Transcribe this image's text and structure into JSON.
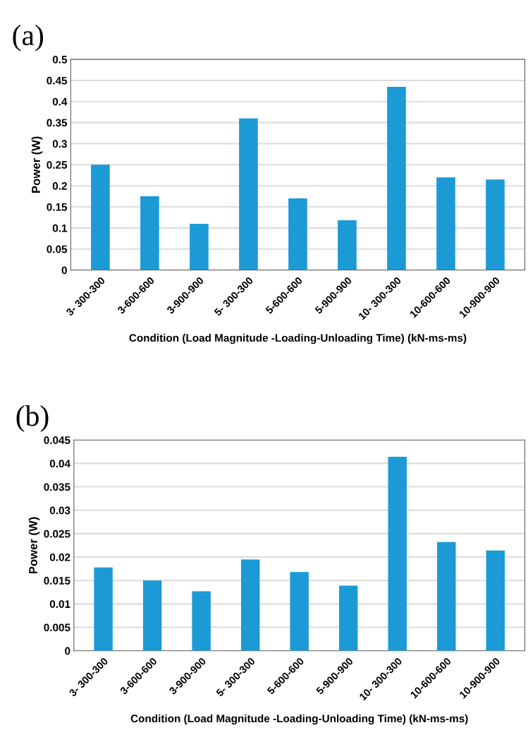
{
  "chart_data": [
    {
      "type": "bar",
      "title": "(a)",
      "xlabel": "Condition (Load Magnitude -Loading-Unloading Time) (kN-ms-ms)",
      "ylabel": "Power (W)",
      "categories": [
        "3- 300-300",
        "3-600-600",
        "3-900-900",
        "5- 300-300",
        "5-600-600",
        "5-900-900",
        "10- 300-300",
        "10-600-600",
        "10-900-900"
      ],
      "values": [
        0.25,
        0.175,
        0.11,
        0.36,
        0.17,
        0.118,
        0.435,
        0.22,
        0.215
      ],
      "color": "#1b9ad6",
      "ylim": [
        0,
        0.5
      ],
      "yticks": [
        0,
        0.05,
        0.1,
        0.15,
        0.2,
        0.25,
        0.3,
        0.35,
        0.4,
        0.45,
        0.5
      ],
      "grid": "y"
    },
    {
      "type": "bar",
      "title": "(b)",
      "xlabel": "Condition (Load Magnitude -Loading-Unloading Time) (kN-ms-ms)",
      "ylabel": "Power (W)",
      "categories": [
        "3- 300-300",
        "3-600-600",
        "3-900-900",
        "5- 300-300",
        "5-600-600",
        "5-900-900",
        "10- 300-300",
        "10-600-600",
        "10-900-900"
      ],
      "values": [
        0.0178,
        0.015,
        0.0127,
        0.0195,
        0.0168,
        0.0139,
        0.0414,
        0.0232,
        0.0214
      ],
      "color": "#1b9ad6",
      "ylim": [
        0,
        0.045
      ],
      "yticks": [
        0,
        0.005,
        0.01,
        0.015,
        0.02,
        0.025,
        0.03,
        0.035,
        0.04,
        0.045
      ],
      "grid": "y"
    }
  ]
}
